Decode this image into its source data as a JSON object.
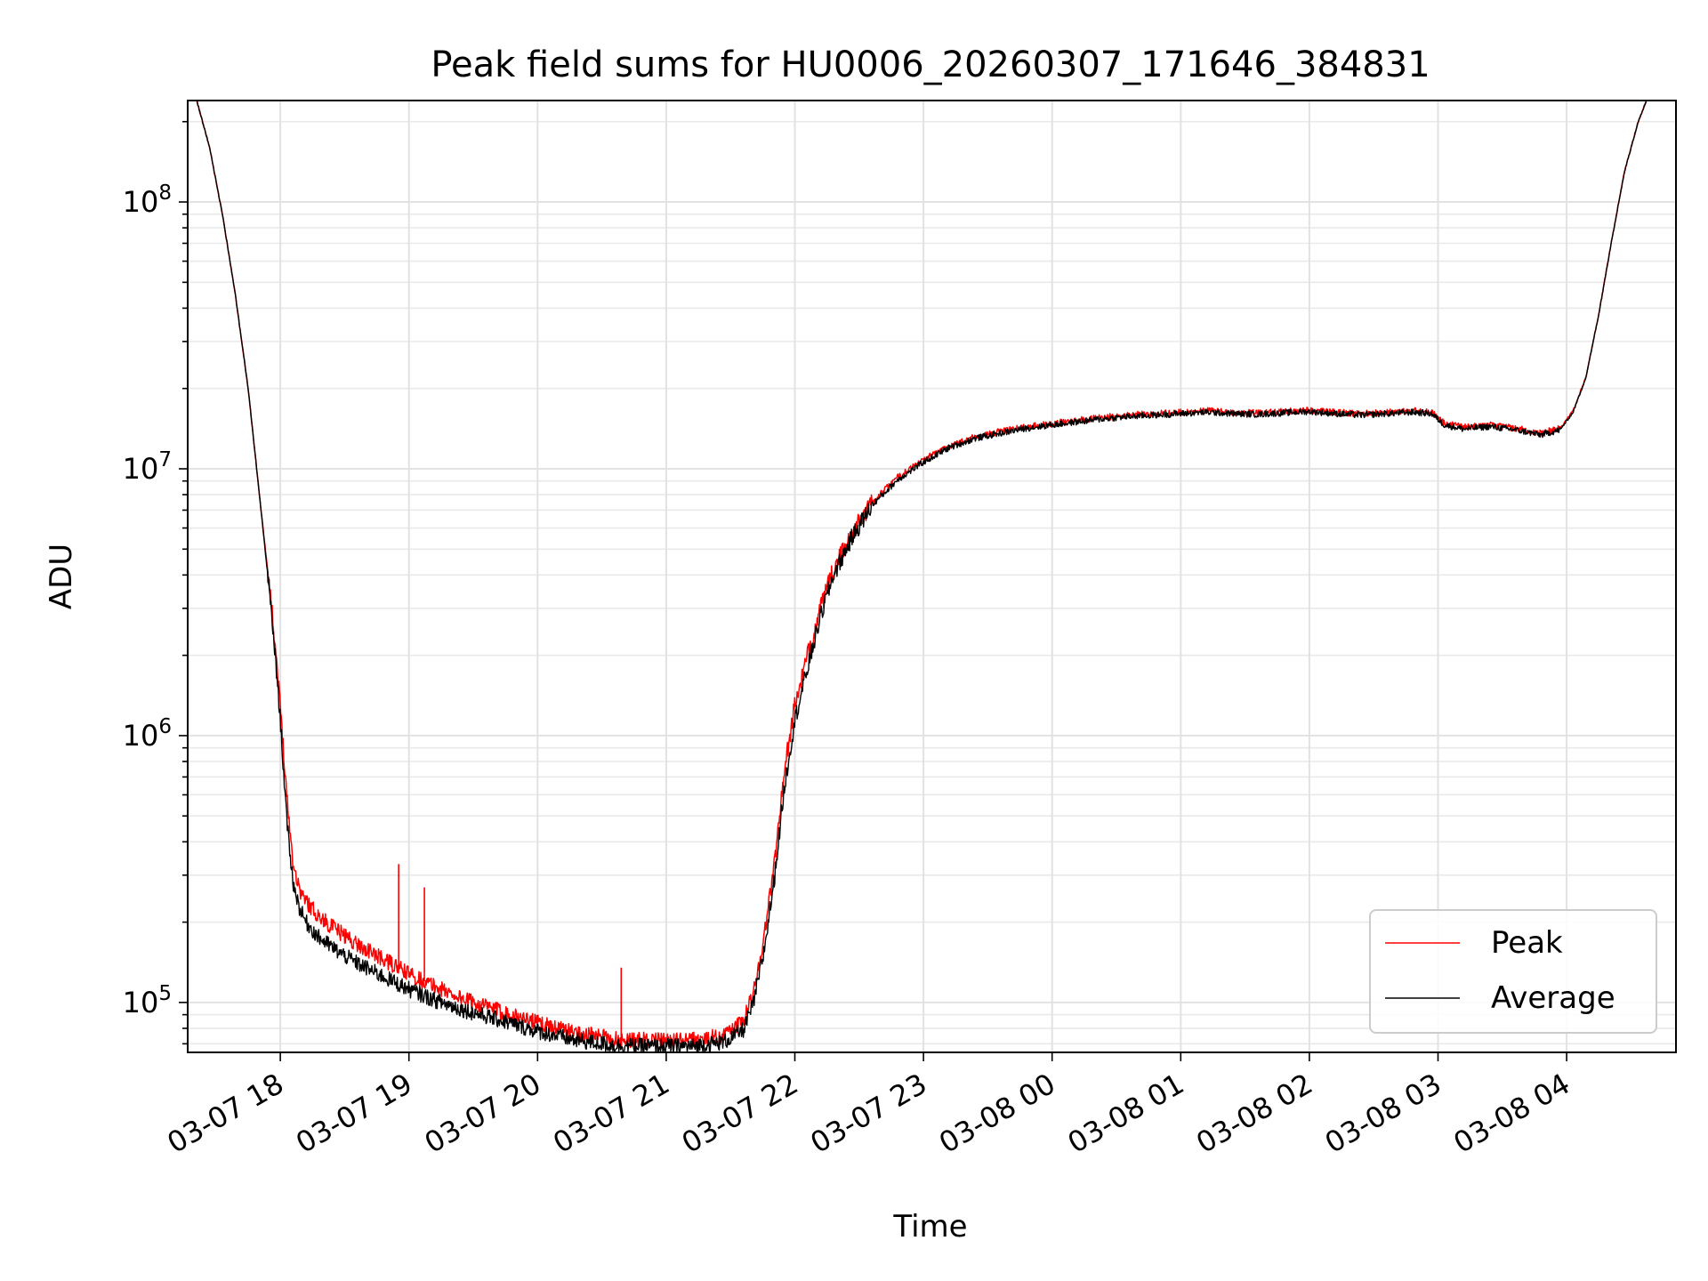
{
  "chart_data": {
    "type": "line",
    "title": "Peak field sums for HU0006_20260307_171646_384831",
    "xlabel": "Time",
    "ylabel": "ADU",
    "yscale": "log",
    "ylim": [
      65000,
      240000000
    ],
    "xlim_hours": [
      17.28,
      28.85
    ],
    "grid": true,
    "legend_position": "lower-right",
    "x_ticks": [
      {
        "hour": 18,
        "label": "03-07 18"
      },
      {
        "hour": 19,
        "label": "03-07 19"
      },
      {
        "hour": 20,
        "label": "03-07 20"
      },
      {
        "hour": 21,
        "label": "03-07 21"
      },
      {
        "hour": 22,
        "label": "03-07 22"
      },
      {
        "hour": 23,
        "label": "03-07 23"
      },
      {
        "hour": 24,
        "label": "03-08 00"
      },
      {
        "hour": 25,
        "label": "03-08 01"
      },
      {
        "hour": 26,
        "label": "03-08 02"
      },
      {
        "hour": 27,
        "label": "03-08 03"
      },
      {
        "hour": 28,
        "label": "03-08 04"
      }
    ],
    "y_ticks": [
      {
        "value": 100000,
        "base": "10",
        "exp": "5"
      },
      {
        "value": 1000000,
        "base": "10",
        "exp": "6"
      },
      {
        "value": 10000000,
        "base": "10",
        "exp": "7"
      },
      {
        "value": 100000000,
        "base": "10",
        "exp": "8"
      }
    ],
    "series": [
      {
        "name": "Peak",
        "color": "#ff0000",
        "x_hours": [
          17.35,
          17.45,
          17.55,
          17.65,
          17.75,
          17.85,
          17.92,
          17.96,
          18.0,
          18.05,
          18.1,
          18.15,
          18.2,
          18.3,
          18.45,
          18.6,
          18.8,
          19.0,
          19.2,
          19.45,
          19.7,
          20.0,
          20.3,
          20.6,
          20.9,
          21.2,
          21.45,
          21.6,
          21.68,
          21.76,
          21.84,
          21.92,
          22.0,
          22.1,
          22.2,
          22.3,
          22.45,
          22.6,
          22.8,
          23.0,
          23.2,
          23.4,
          23.6,
          23.8,
          24.0,
          24.2,
          24.4,
          24.6,
          24.8,
          25.0,
          25.2,
          25.4,
          25.6,
          25.8,
          26.0,
          26.2,
          26.4,
          26.6,
          26.8,
          26.95,
          27.05,
          27.2,
          27.4,
          27.6,
          27.8,
          27.95,
          28.05,
          28.15,
          28.25,
          28.35,
          28.45,
          28.55,
          28.62
        ],
        "y_values": [
          240000000,
          160000000,
          90000000,
          45000000,
          20000000,
          7000000,
          3500000,
          2200000,
          1300000,
          600000,
          330000,
          265000,
          240000,
          210000,
          185000,
          165000,
          145000,
          128000,
          115000,
          102000,
          93000,
          84000,
          77000,
          73000,
          72000,
          72000,
          75000,
          85000,
          110000,
          175000,
          330000,
          750000,
          1300000,
          2000000,
          3000000,
          4200000,
          5800000,
          7500000,
          9300000,
          10800000,
          12200000,
          13200000,
          13800000,
          14400000,
          14800000,
          15200000,
          15600000,
          15900000,
          16100000,
          16300000,
          16500000,
          16300000,
          16200000,
          16400000,
          16600000,
          16300000,
          16100000,
          16300000,
          16500000,
          16300000,
          14800000,
          14300000,
          14600000,
          14200000,
          13600000,
          14200000,
          16500000,
          22000000,
          38000000,
          72000000,
          130000000,
          195000000,
          240000000
        ],
        "spikes": [
          {
            "hour": 18.92,
            "value": 330000
          },
          {
            "hour": 19.12,
            "value": 270000
          },
          {
            "hour": 20.65,
            "value": 135000
          }
        ]
      },
      {
        "name": "Average",
        "color": "#000000",
        "x_hours": [
          17.35,
          17.45,
          17.55,
          17.65,
          17.75,
          17.85,
          17.92,
          17.96,
          18.0,
          18.05,
          18.1,
          18.15,
          18.2,
          18.3,
          18.45,
          18.6,
          18.8,
          19.0,
          19.2,
          19.45,
          19.7,
          20.0,
          20.3,
          20.6,
          20.9,
          21.2,
          21.45,
          21.6,
          21.68,
          21.76,
          21.84,
          21.92,
          22.0,
          22.1,
          22.2,
          22.3,
          22.45,
          22.6,
          22.8,
          23.0,
          23.2,
          23.4,
          23.6,
          23.8,
          24.0,
          24.2,
          24.4,
          24.6,
          24.8,
          25.0,
          25.2,
          25.4,
          25.6,
          25.8,
          26.0,
          26.2,
          26.4,
          26.6,
          26.8,
          26.95,
          27.05,
          27.2,
          27.4,
          27.6,
          27.8,
          27.95,
          28.05,
          28.15,
          28.25,
          28.35,
          28.45,
          28.55,
          28.62
        ],
        "y_values": [
          240000000,
          160000000,
          90000000,
          45000000,
          20000000,
          7000000,
          3300000,
          2000000,
          1150000,
          480000,
          280000,
          225000,
          200000,
          175000,
          155000,
          140000,
          125000,
          112000,
          102000,
          93000,
          86000,
          78000,
          72000,
          69000,
          68500,
          68500,
          71000,
          79000,
          100000,
          155000,
          290000,
          650000,
          1150000,
          1800000,
          2800000,
          4000000,
          5600000,
          7300000,
          9100000,
          10600000,
          12000000,
          13000000,
          13600000,
          14200000,
          14600000,
          15000000,
          15400000,
          15700000,
          15900000,
          16100000,
          16300000,
          16100000,
          16000000,
          16200000,
          16400000,
          16100000,
          15900000,
          16100000,
          16300000,
          16100000,
          14600000,
          14100000,
          14400000,
          14000000,
          13400000,
          14000000,
          16300000,
          22000000,
          38000000,
          72000000,
          130000000,
          195000000,
          240000000
        ],
        "spikes": []
      }
    ]
  }
}
